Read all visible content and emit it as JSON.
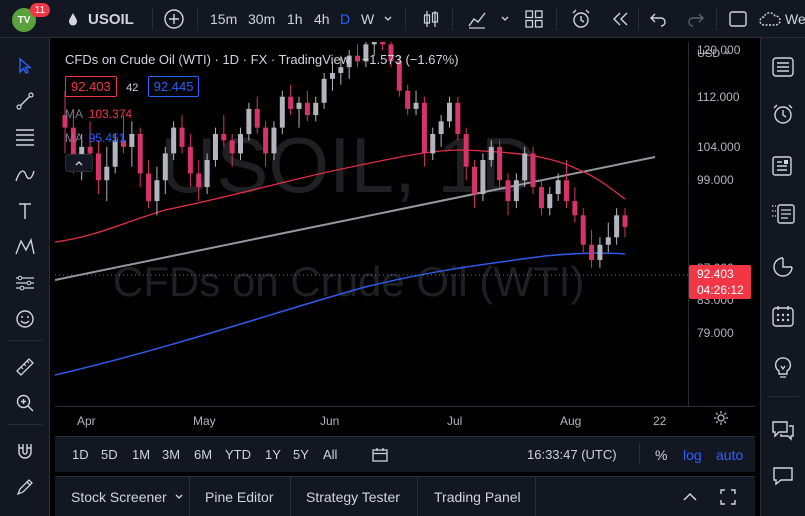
{
  "header": {
    "logo_text": "TV",
    "notification_count": "11",
    "symbol": "USOIL",
    "intervals": [
      "15m",
      "30m",
      "1h",
      "4h",
      "D",
      "W"
    ],
    "active_interval": "D",
    "cutoff_text": "We"
  },
  "legend": {
    "title": "CFDs on Crude Oil (WTI) · 1D · FX · TradingView",
    "change": "−1.573 (−1.67%)",
    "bid": "92.403",
    "spread": "42",
    "ask": "92.445",
    "ma1_label": "MA",
    "ma1_value": "103.374",
    "ma2_label": "MA",
    "ma2_value": "95.451"
  },
  "watermark": {
    "symbol_line": "USOIL, 1D",
    "name_line": "CFDs on Crude Oil (WTI)"
  },
  "price_scale": {
    "currency": "USD",
    "ticks": [
      "120.000",
      "112.000",
      "104.000",
      "99.000",
      "92.000",
      "87.000",
      "83.000",
      "79.000"
    ],
    "current_price": "92.403",
    "countdown": "04:26:12"
  },
  "time_scale": {
    "labels": [
      "Apr",
      "May",
      "Jun",
      "Jul",
      "Aug",
      "22"
    ]
  },
  "range_bar": {
    "ranges": [
      "1D",
      "5D",
      "1M",
      "3M",
      "6M",
      "YTD",
      "1Y",
      "5Y",
      "All"
    ],
    "clock": "16:33:47 (UTC)",
    "percent": "%",
    "log": "log",
    "auto": "auto"
  },
  "bottom_tabs": [
    "Stock Screener",
    "Pine Editor",
    "Strategy Tester",
    "Trading Panel"
  ],
  "colors": {
    "up": "#b2b5be",
    "down": "#d6336c",
    "ma_red": "#e03040",
    "ma_blue": "#2f5bea",
    "accent": "#2962ff"
  },
  "chart_data": {
    "type": "candlestick",
    "y_range": [
      77,
      124
    ],
    "candles": [
      {
        "o": 109,
        "h": 113,
        "l": 103,
        "c": 107
      },
      {
        "o": 107,
        "h": 110,
        "l": 100,
        "c": 102
      },
      {
        "o": 102,
        "h": 106,
        "l": 99,
        "c": 104
      },
      {
        "o": 104,
        "h": 108,
        "l": 101,
        "c": 103
      },
      {
        "o": 103,
        "h": 105,
        "l": 97,
        "c": 99
      },
      {
        "o": 99,
        "h": 104,
        "l": 96,
        "c": 101
      },
      {
        "o": 101,
        "h": 106,
        "l": 100,
        "c": 105
      },
      {
        "o": 105,
        "h": 109,
        "l": 103,
        "c": 104
      },
      {
        "o": 104,
        "h": 108,
        "l": 101,
        "c": 106
      },
      {
        "o": 106,
        "h": 107,
        "l": 98,
        "c": 100
      },
      {
        "o": 100,
        "h": 102,
        "l": 95,
        "c": 96
      },
      {
        "o": 96,
        "h": 101,
        "l": 94,
        "c": 99
      },
      {
        "o": 99,
        "h": 104,
        "l": 97,
        "c": 103
      },
      {
        "o": 103,
        "h": 108,
        "l": 102,
        "c": 107
      },
      {
        "o": 107,
        "h": 109,
        "l": 103,
        "c": 104
      },
      {
        "o": 104,
        "h": 106,
        "l": 98,
        "c": 100
      },
      {
        "o": 100,
        "h": 102,
        "l": 96,
        "c": 98
      },
      {
        "o": 98,
        "h": 103,
        "l": 97,
        "c": 102
      },
      {
        "o": 102,
        "h": 107,
        "l": 101,
        "c": 106
      },
      {
        "o": 106,
        "h": 109,
        "l": 104,
        "c": 105
      },
      {
        "o": 105,
        "h": 106,
        "l": 101,
        "c": 103
      },
      {
        "o": 103,
        "h": 107,
        "l": 102,
        "c": 106
      },
      {
        "o": 106,
        "h": 111,
        "l": 105,
        "c": 110
      },
      {
        "o": 110,
        "h": 112,
        "l": 106,
        "c": 107
      },
      {
        "o": 107,
        "h": 108,
        "l": 101,
        "c": 103
      },
      {
        "o": 103,
        "h": 108,
        "l": 102,
        "c": 107
      },
      {
        "o": 107,
        "h": 113,
        "l": 106,
        "c": 112
      },
      {
        "o": 112,
        "h": 114,
        "l": 109,
        "c": 110
      },
      {
        "o": 110,
        "h": 112,
        "l": 107,
        "c": 111
      },
      {
        "o": 111,
        "h": 113,
        "l": 108,
        "c": 109
      },
      {
        "o": 109,
        "h": 112,
        "l": 108,
        "c": 111
      },
      {
        "o": 111,
        "h": 116,
        "l": 110,
        "c": 115
      },
      {
        "o": 115,
        "h": 118,
        "l": 113,
        "c": 116
      },
      {
        "o": 116,
        "h": 119,
        "l": 114,
        "c": 117
      },
      {
        "o": 117,
        "h": 120,
        "l": 115,
        "c": 119
      },
      {
        "o": 119,
        "h": 121,
        "l": 117,
        "c": 118
      },
      {
        "o": 118,
        "h": 122,
        "l": 117,
        "c": 121
      },
      {
        "o": 121,
        "h": 123,
        "l": 119,
        "c": 122
      },
      {
        "o": 122,
        "h": 124,
        "l": 120,
        "c": 121
      },
      {
        "o": 121,
        "h": 123,
        "l": 117,
        "c": 118
      },
      {
        "o": 118,
        "h": 119,
        "l": 112,
        "c": 113
      },
      {
        "o": 113,
        "h": 114,
        "l": 109,
        "c": 110
      },
      {
        "o": 110,
        "h": 113,
        "l": 109,
        "c": 111
      },
      {
        "o": 111,
        "h": 112,
        "l": 101,
        "c": 103
      },
      {
        "o": 103,
        "h": 107,
        "l": 102,
        "c": 106
      },
      {
        "o": 106,
        "h": 109,
        "l": 104,
        "c": 108
      },
      {
        "o": 108,
        "h": 112,
        "l": 107,
        "c": 111
      },
      {
        "o": 111,
        "h": 112,
        "l": 105,
        "c": 106
      },
      {
        "o": 106,
        "h": 107,
        "l": 99,
        "c": 101
      },
      {
        "o": 101,
        "h": 102,
        "l": 95,
        "c": 97
      },
      {
        "o": 97,
        "h": 103,
        "l": 96,
        "c": 102
      },
      {
        "o": 102,
        "h": 105,
        "l": 101,
        "c": 104
      },
      {
        "o": 104,
        "h": 105,
        "l": 98,
        "c": 99
      },
      {
        "o": 99,
        "h": 100,
        "l": 94,
        "c": 96
      },
      {
        "o": 96,
        "h": 100,
        "l": 95,
        "c": 99
      },
      {
        "o": 99,
        "h": 104,
        "l": 98,
        "c": 103
      },
      {
        "o": 103,
        "h": 104,
        "l": 97,
        "c": 98
      },
      {
        "o": 98,
        "h": 99,
        "l": 94,
        "c": 95
      },
      {
        "o": 95,
        "h": 98,
        "l": 94,
        "c": 97
      },
      {
        "o": 97,
        "h": 100,
        "l": 96,
        "c": 99
      },
      {
        "o": 99,
        "h": 102,
        "l": 95,
        "c": 96
      },
      {
        "o": 96,
        "h": 98,
        "l": 93,
        "c": 94
      },
      {
        "o": 94,
        "h": 95,
        "l": 89,
        "c": 90
      },
      {
        "o": 90,
        "h": 92,
        "l": 87,
        "c": 88
      },
      {
        "o": 88,
        "h": 91,
        "l": 87,
        "c": 90
      },
      {
        "o": 90,
        "h": 93,
        "l": 89,
        "c": 91
      },
      {
        "o": 91,
        "h": 95,
        "l": 90,
        "c": 94
      },
      {
        "o": 94,
        "h": 95,
        "l": 91,
        "c": 92.4
      }
    ]
  }
}
